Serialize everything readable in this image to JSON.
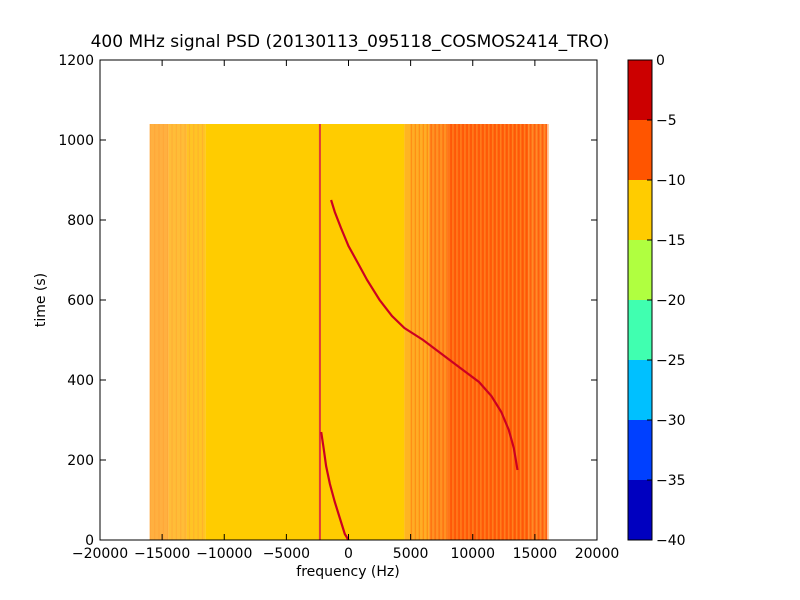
{
  "chart_data": {
    "type": "heatmap",
    "title": "400 MHz signal PSD (20130113_095118_COSMOS2414_TRO)",
    "xlabel": "frequency (Hz)",
    "ylabel": "time (s)",
    "xlim": [
      -20000,
      20000
    ],
    "ylim": [
      0,
      1200
    ],
    "xticks": [
      -20000,
      -15000,
      -10000,
      -5000,
      0,
      5000,
      10000,
      15000,
      20000
    ],
    "xtick_labels": [
      "−20000",
      "−15000",
      "−10000",
      "−5000",
      "0",
      "5000",
      "10000",
      "15000",
      "20000"
    ],
    "yticks": [
      0,
      200,
      400,
      600,
      800,
      1000,
      1200
    ],
    "ytick_labels": [
      "0",
      "200",
      "400",
      "600",
      "800",
      "1000",
      "1200"
    ],
    "data_extent": {
      "x": [
        -16000,
        16000
      ],
      "y": [
        0,
        1040
      ]
    },
    "colorbar": {
      "levels": [
        -40,
        -35,
        -30,
        -25,
        -20,
        -15,
        -10,
        -5,
        0
      ],
      "tick_labels": [
        "−40",
        "−35",
        "−30",
        "−25",
        "−20",
        "−15",
        "−10",
        "−5",
        "0"
      ],
      "colors": [
        "#0000c0",
        "#0040ff",
        "#00c0ff",
        "#40ffb0",
        "#b0ff40",
        "#ffcc00",
        "#ff5500",
        "#cc0000"
      ]
    },
    "background_profile": [
      {
        "x0": -16000,
        "x1": -14500,
        "color": "#ffb040"
      },
      {
        "x0": -14500,
        "x1": -13000,
        "color": "#ffbd38"
      },
      {
        "x0": -13000,
        "x1": -11500,
        "color": "#ffc425"
      },
      {
        "x0": -11500,
        "x1": 4500,
        "color": "#ffcc00"
      },
      {
        "x0": 4500,
        "x1": 6500,
        "color": "#ffb422"
      },
      {
        "x0": 6500,
        "x1": 8000,
        "color": "#ff8c1e"
      },
      {
        "x0": 8000,
        "x1": 14500,
        "color": "#ff6610"
      },
      {
        "x0": 14500,
        "x1": 16000,
        "color": "#ff7a20"
      }
    ],
    "features": {
      "vertical_line": {
        "x": -2300,
        "y": [
          0,
          1040
        ],
        "color": "#e03a3a"
      },
      "doppler_curve_upper": {
        "color": "#cc0022",
        "points": [
          [
            -1400,
            850
          ],
          [
            -1100,
            820
          ],
          [
            -600,
            780
          ],
          [
            0,
            735
          ],
          [
            800,
            690
          ],
          [
            1500,
            650
          ],
          [
            2500,
            600
          ],
          [
            3500,
            560
          ],
          [
            4500,
            530
          ],
          [
            6000,
            500
          ],
          [
            7500,
            465
          ],
          [
            9000,
            430
          ],
          [
            10500,
            395
          ],
          [
            11500,
            360
          ],
          [
            12300,
            320
          ],
          [
            12900,
            275
          ],
          [
            13300,
            230
          ],
          [
            13600,
            175
          ]
        ]
      },
      "doppler_curve_lower": {
        "color": "#cc0022",
        "points": [
          [
            -2200,
            270
          ],
          [
            -2000,
            230
          ],
          [
            -1800,
            185
          ],
          [
            -1500,
            140
          ],
          [
            -1100,
            95
          ],
          [
            -700,
            55
          ],
          [
            -300,
            15
          ],
          [
            0,
            0
          ]
        ]
      }
    }
  }
}
